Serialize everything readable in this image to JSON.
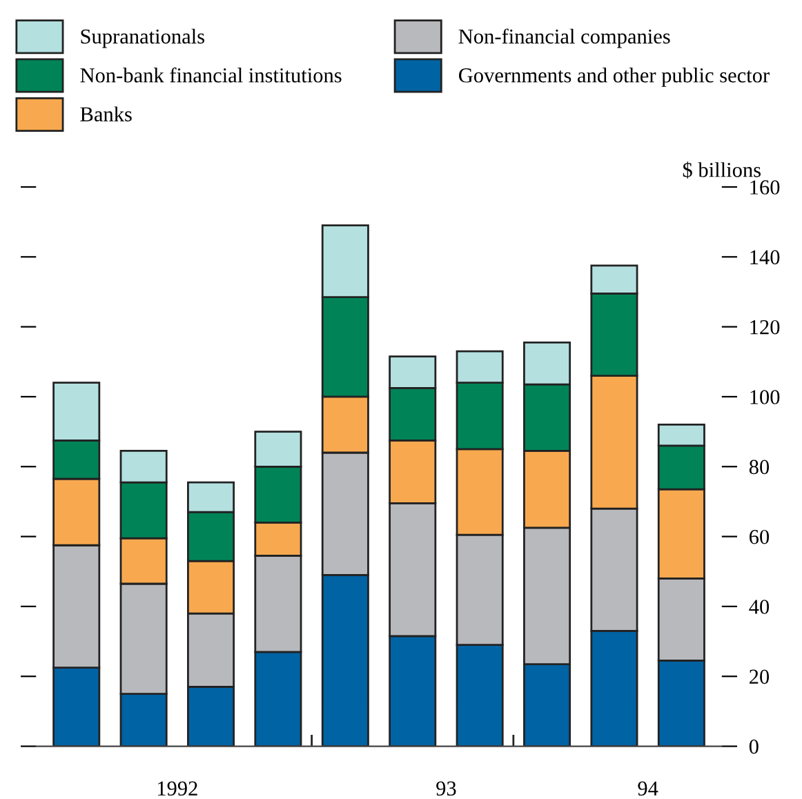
{
  "chart_data": {
    "type": "bar",
    "stacked": true,
    "ylabel": "$ billions",
    "categories": [
      null,
      "1992",
      null,
      null,
      null,
      "93",
      null,
      null,
      "94",
      null
    ],
    "series": [
      {
        "name": "Governments and other public sector",
        "color": "#0063a3",
        "values": [
          22.5,
          15,
          17,
          27,
          49,
          31.5,
          29,
          23.5,
          33,
          24.5
        ]
      },
      {
        "name": "Non-financial companies",
        "color": "#b8b9bd",
        "values": [
          35,
          31.5,
          21,
          27.5,
          35,
          38,
          31.5,
          39,
          35,
          23.5
        ]
      },
      {
        "name": "Banks",
        "color": "#f8a94f",
        "values": [
          19,
          13,
          15,
          9.5,
          16,
          18,
          24.5,
          22,
          38,
          25.5
        ]
      },
      {
        "name": "Non-bank financial institutions",
        "color": "#008457",
        "values": [
          11,
          16,
          14,
          16,
          28.5,
          15,
          19,
          19,
          23.5,
          12.5
        ]
      },
      {
        "name": "Supranationals",
        "color": "#b4e0e0",
        "values": [
          16.5,
          9,
          8.5,
          10,
          20.5,
          9,
          9,
          12,
          8,
          6
        ]
      }
    ],
    "ylim": [
      0,
      160
    ],
    "yticks": [
      0,
      20,
      40,
      60,
      80,
      100,
      120,
      140,
      160
    ],
    "grid": false,
    "legend": "top"
  }
}
